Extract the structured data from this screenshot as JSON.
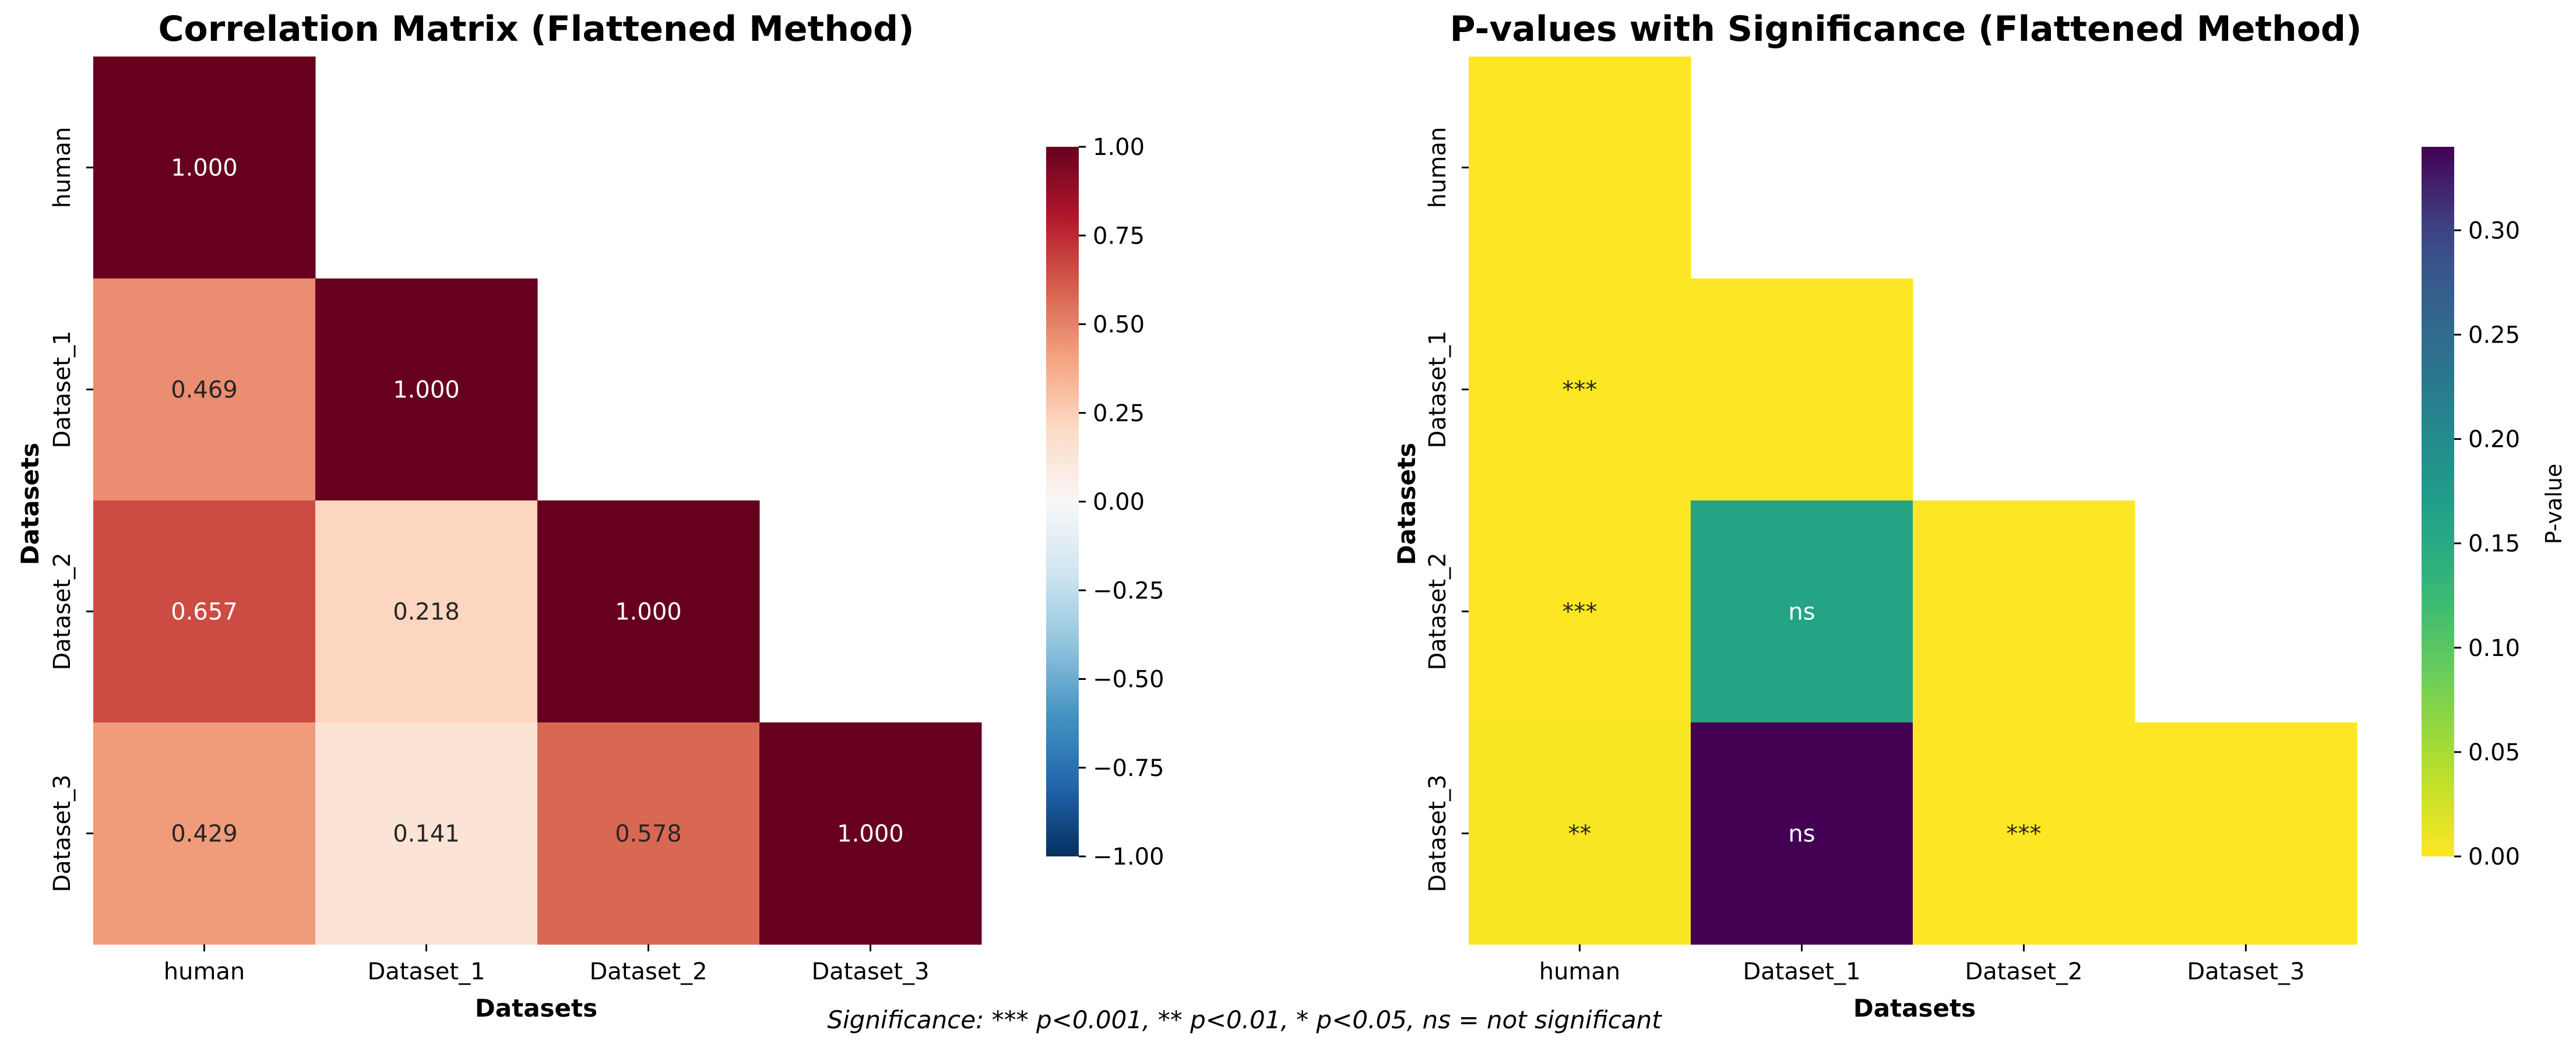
{
  "chart_data": [
    {
      "type": "heatmap",
      "title": "Correlation Matrix (Flattened Method)",
      "xlabel": "Datasets",
      "ylabel": "Datasets",
      "x_categories": [
        "human",
        "Dataset_1",
        "Dataset_2",
        "Dataset_3"
      ],
      "y_categories": [
        "human",
        "Dataset_1",
        "Dataset_2",
        "Dataset_3"
      ],
      "mask": "upper-triangle",
      "values": [
        [
          1.0,
          null,
          null,
          null
        ],
        [
          0.469,
          1.0,
          null,
          null
        ],
        [
          0.657,
          0.218,
          1.0,
          null
        ],
        [
          0.429,
          0.141,
          0.578,
          1.0
        ]
      ],
      "annotations": [
        [
          "1.000",
          "",
          "",
          ""
        ],
        [
          "0.469",
          "1.000",
          "",
          ""
        ],
        [
          "0.657",
          "0.218",
          "1.000",
          ""
        ],
        [
          "0.429",
          "0.141",
          "0.578",
          "1.000"
        ]
      ],
      "colormap": "RdBu_r",
      "colorbar": {
        "range": [
          -1.0,
          1.0
        ],
        "ticks": [
          1.0,
          0.75,
          0.5,
          0.25,
          0.0,
          -0.25,
          -0.5,
          -0.75,
          -1.0
        ],
        "tick_labels": [
          "1.00",
          "0.75",
          "0.50",
          "0.25",
          "0.00",
          "−0.25",
          "−0.50",
          "−0.75",
          "−1.00"
        ],
        "label": ""
      }
    },
    {
      "type": "heatmap",
      "title": "P-values with Significance (Flattened Method)",
      "xlabel": "Datasets",
      "ylabel": "Datasets",
      "x_categories": [
        "human",
        "Dataset_1",
        "Dataset_2",
        "Dataset_3"
      ],
      "y_categories": [
        "human",
        "Dataset_1",
        "Dataset_2",
        "Dataset_3"
      ],
      "mask": "upper-triangle",
      "values": [
        [
          0.0,
          null,
          null,
          null
        ],
        [
          0.0,
          0.0,
          null,
          null
        ],
        [
          0.0,
          0.16,
          0.0,
          null
        ],
        [
          0.003,
          0.34,
          0.0,
          0.0
        ]
      ],
      "annotations": [
        [
          "",
          "",
          "",
          ""
        ],
        [
          "***",
          "",
          "",
          ""
        ],
        [
          "***",
          "ns",
          "",
          ""
        ],
        [
          "**",
          "ns",
          "***",
          ""
        ]
      ],
      "colormap": "viridis_r",
      "colorbar": {
        "range": [
          0.0,
          0.34
        ],
        "ticks": [
          0.3,
          0.25,
          0.2,
          0.15,
          0.1,
          0.05,
          0.0
        ],
        "tick_labels": [
          "0.30",
          "0.25",
          "0.20",
          "0.15",
          "0.10",
          "0.05",
          "0.00"
        ],
        "label": "P-value"
      }
    }
  ],
  "footnote": "Significance: *** p<0.001, ** p<0.01, * p<0.05, ns = not significant"
}
